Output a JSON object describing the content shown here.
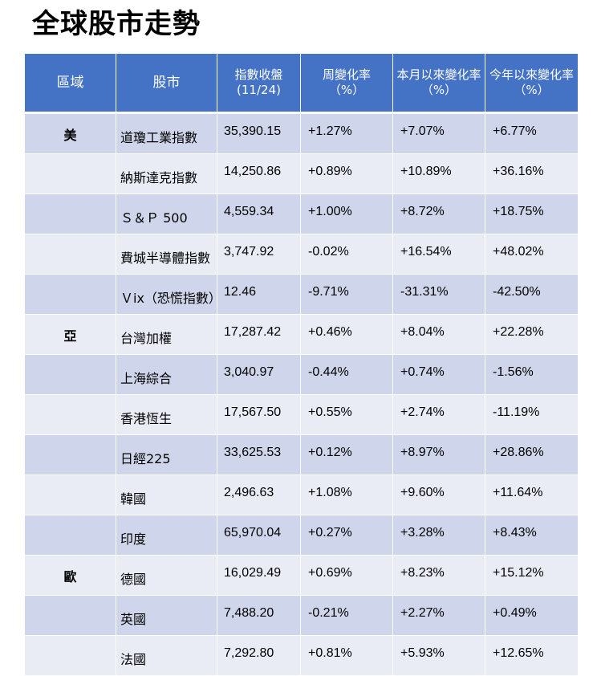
{
  "title": "全球股市走勢",
  "headers": {
    "region": "區域",
    "market": "股市",
    "close_line1": "指數收盤",
    "close_line2": "(11/24)",
    "week_line1": "周變化率",
    "week_line2": "（%）",
    "month_line1": "本月以來變化率",
    "month_line2": "（%）",
    "ytd_line1": "今年以來變化率",
    "ytd_line2": "（%）"
  },
  "colors": {
    "header_bg": "#4472c4",
    "row_dark": "#cfd5ea",
    "row_light": "#e9ebf5",
    "positive": "#00b050",
    "negative": "#ff0000"
  },
  "rows": [
    {
      "region": "美",
      "name": "道瓊工業指數",
      "close": "35,390.15",
      "week": "+1.27%",
      "month": "+7.07%",
      "ytd": "+6.77%"
    },
    {
      "region": "",
      "name": "納斯達克指數",
      "close": "14,250.86",
      "week": "+0.89%",
      "month": "+10.89%",
      "ytd": "+36.16%"
    },
    {
      "region": "",
      "name": "Ｓ＆Ｐ 500",
      "close": "4,559.34",
      "week": "+1.00%",
      "month": "+8.72%",
      "ytd": "+18.75%"
    },
    {
      "region": "",
      "name": "費城半導體指數",
      "close": "3,747.92",
      "week": "-0.02%",
      "month": "+16.54%",
      "ytd": "+48.02%"
    },
    {
      "region": "",
      "name": "Ｖix（恐慌指數）",
      "close": "12.46",
      "week": "-9.71%",
      "month": "-31.31%",
      "ytd": "-42.50%"
    },
    {
      "region": "亞",
      "name": "台灣加權",
      "close": "17,287.42",
      "week": "+0.46%",
      "month": "+8.04%",
      "ytd": "+22.28%"
    },
    {
      "region": "",
      "name": "上海綜合",
      "close": "3,040.97",
      "week": "-0.44%",
      "month": "+0.74%",
      "ytd": "-1.56%"
    },
    {
      "region": "",
      "name": "香港恆生",
      "close": "17,567.50",
      "week": "+0.55%",
      "month": "+2.74%",
      "ytd": "-11.19%"
    },
    {
      "region": "",
      "name": "日經225",
      "close": "33,625.53",
      "week": "+0.12%",
      "month": "+8.97%",
      "ytd": "+28.86%"
    },
    {
      "region": "",
      "name": "韓國",
      "close": "2,496.63",
      "week": "+1.08%",
      "month": "+9.60%",
      "ytd": "+11.64%"
    },
    {
      "region": "",
      "name": "印度",
      "close": "65,970.04",
      "week": "+0.27%",
      "month": "+3.28%",
      "ytd": "+8.43%"
    },
    {
      "region": "歐",
      "name": "德國",
      "close": "16,029.49",
      "week": "+0.69%",
      "month": "+8.23%",
      "ytd": "+15.12%"
    },
    {
      "region": "",
      "name": "英國",
      "close": "7,488.20",
      "week": "-0.21%",
      "month": "+2.27%",
      "ytd": "+0.49%"
    },
    {
      "region": "",
      "name": "法國",
      "close": "7,292.80",
      "week": "+0.81%",
      "month": "+5.93%",
      "ytd": "+12.65%"
    }
  ]
}
